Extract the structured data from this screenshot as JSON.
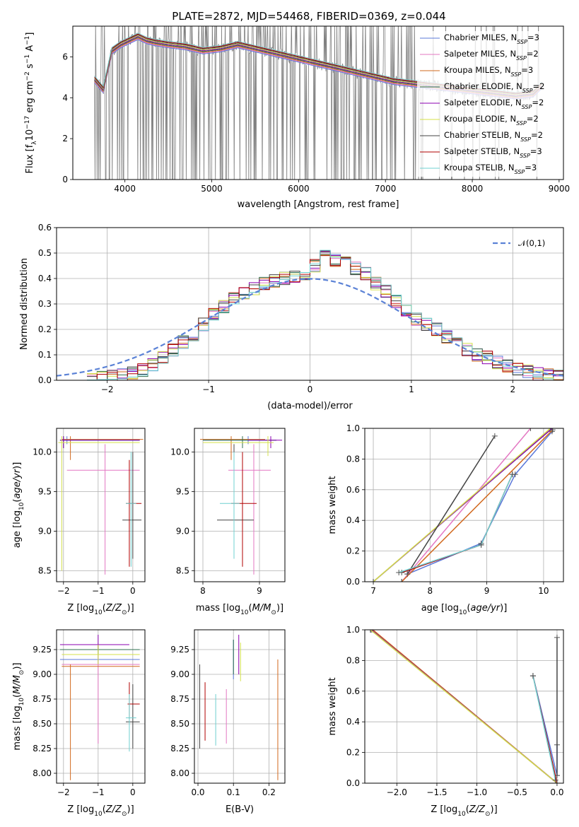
{
  "figure": {
    "title": "PLATE=2872, MJD=54468, FIBERID=0369, z=0.044"
  },
  "colors": {
    "Chabrier MILES": "#5b78d9",
    "Salpeter MILES": "#e377c2",
    "Kroupa MILES": "#d2691e",
    "Chabrier ELODIE": "#2f6f4f",
    "Salpeter ELODIE": "#8b00b0",
    "Kroupa ELODIE": "#d4e04a",
    "Chabrier STELIB": "#444444",
    "Salpeter STELIB": "#b00000",
    "Kroupa STELIB": "#6fd0d0",
    "data": "#808080",
    "normal": "#5b82d6"
  },
  "chart_data": [
    {
      "id": "spectrum",
      "type": "line",
      "title": "PLATE=2872, MJD=54468, FIBERID=0369, z=0.044",
      "xlabel": "wavelength [Angstrom, rest frame]",
      "ylabel": "Flux [f_λ 10^-17 erg cm^-2 s^-1 A^-1]",
      "xlim": [
        3400,
        9050
      ],
      "ylim": [
        0,
        7.5
      ],
      "xticks": [
        4000,
        5000,
        6000,
        7000,
        8000,
        9000
      ],
      "yticks": [
        0,
        2,
        4,
        6
      ],
      "legend_position": "right",
      "series": [
        {
          "name": "Chabrier MILES, N_SSP=3",
          "label_main": "Chabrier MILES, N",
          "label_sub": "SSP",
          "label_tail": "=3",
          "color": "#5b78d9"
        },
        {
          "name": "Salpeter MILES, N_SSP=2",
          "label_main": "Salpeter MILES, N",
          "label_sub": "SSP",
          "label_tail": "=2",
          "color": "#e377c2"
        },
        {
          "name": "Kroupa MILES, N_SSP=3",
          "label_main": "Kroupa MILES, N",
          "label_sub": "SSP",
          "label_tail": "=3",
          "color": "#d2691e"
        },
        {
          "name": "Chabrier ELODIE, N_SSP=2",
          "label_main": "Chabrier ELODIE, N",
          "label_sub": "SSP",
          "label_tail": "=2",
          "color": "#2f6f4f"
        },
        {
          "name": "Salpeter ELODIE, N_SSP=2",
          "label_main": "Salpeter ELODIE, N",
          "label_sub": "SSP",
          "label_tail": "=2",
          "color": "#8b00b0"
        },
        {
          "name": "Kroupa ELODIE, N_SSP=2",
          "label_main": "Kroupa ELODIE, N",
          "label_sub": "SSP",
          "label_tail": "=2",
          "color": "#d4e04a"
        },
        {
          "name": "Chabrier STELIB, N_SSP=2",
          "label_main": "Chabrier STELIB, N",
          "label_sub": "SSP",
          "label_tail": "=2",
          "color": "#444444"
        },
        {
          "name": "Salpeter STELIB, N_SSP=3",
          "label_main": "Salpeter STELIB, N",
          "label_sub": "SSP",
          "label_tail": "=3",
          "color": "#b00000"
        },
        {
          "name": "Kroupa STELIB, N_SSP=3",
          "label_main": "Kroupa STELIB, N",
          "label_sub": "SSP",
          "label_tail": "=3",
          "color": "#6fd0d0"
        }
      ],
      "model_continuum": {
        "x": [
          3650,
          3750,
          3850,
          3950,
          4050,
          4150,
          4250,
          4350,
          4500,
          4700,
          4900,
          5100,
          5300,
          5500,
          5700,
          5900,
          6100,
          6300,
          6500,
          6700,
          6900,
          7100,
          7300,
          7500,
          7700,
          7900,
          8100,
          8300,
          8500,
          8700,
          8800
        ],
        "y": [
          4.9,
          4.4,
          6.3,
          6.6,
          6.8,
          7.0,
          6.8,
          6.7,
          6.6,
          6.5,
          6.3,
          6.4,
          6.6,
          6.4,
          6.2,
          6.0,
          5.8,
          5.6,
          5.4,
          5.2,
          5.0,
          4.8,
          4.7,
          4.6,
          4.5,
          4.4,
          4.3,
          4.2,
          4.1,
          4.2,
          4.6
        ]
      }
    },
    {
      "id": "residuals",
      "type": "line",
      "xlabel": "(data-model)/error",
      "ylabel": "Normed distribution",
      "xlim": [
        -2.5,
        2.5
      ],
      "ylim": [
        0,
        0.6
      ],
      "xticks": [
        -2,
        -1,
        0,
        1,
        2
      ],
      "yticks": [
        0.0,
        0.1,
        0.2,
        0.3,
        0.4,
        0.5,
        0.6
      ],
      "legend_math": "𝒩(0,1)",
      "legend_position": "upper right",
      "series": [
        {
          "name": "N(0,1)",
          "style": "dashed",
          "color": "#5b82d6"
        }
      ],
      "histogram": {
        "bin_edges": [
          -2.2,
          -2.1,
          -2.0,
          -1.9,
          -1.8,
          -1.7,
          -1.6,
          -1.5,
          -1.4,
          -1.3,
          -1.2,
          -1.1,
          -1.0,
          -0.9,
          -0.8,
          -0.7,
          -0.6,
          -0.5,
          -0.4,
          -0.3,
          -0.2,
          -0.1,
          0.0,
          0.1,
          0.2,
          0.3,
          0.4,
          0.5,
          0.6,
          0.7,
          0.8,
          0.9,
          1.0,
          1.1,
          1.2,
          1.3,
          1.4,
          1.5,
          1.6,
          1.7,
          1.8,
          1.9,
          2.0,
          2.1,
          2.2,
          2.3,
          2.4,
          2.5
        ],
        "values": [
          0.005,
          0.01,
          0.015,
          0.02,
          0.03,
          0.04,
          0.06,
          0.09,
          0.12,
          0.15,
          0.18,
          0.22,
          0.26,
          0.29,
          0.32,
          0.34,
          0.36,
          0.38,
          0.39,
          0.4,
          0.41,
          0.42,
          0.45,
          0.5,
          0.47,
          0.46,
          0.44,
          0.42,
          0.38,
          0.35,
          0.31,
          0.27,
          0.24,
          0.22,
          0.2,
          0.17,
          0.15,
          0.12,
          0.1,
          0.09,
          0.07,
          0.055,
          0.045,
          0.035,
          0.025,
          0.02,
          0.015
        ]
      }
    },
    {
      "id": "age_vs_Z",
      "type": "scatter",
      "xlabel": "Z [log10(Z/Z⊙)]",
      "ylabel": "age [log10(age/yr)]",
      "xlim": [
        -2.2,
        0.35
      ],
      "ylim": [
        8.36,
        10.3
      ],
      "xticks": [
        -2,
        -1,
        0
      ],
      "yticks": [
        8.5,
        9.0,
        9.5,
        10.0
      ],
      "points": [
        {
          "model": "Chabrier MILES",
          "x": -1.9,
          "y": 10.15,
          "xlo": -2.1,
          "xhi": 0.2,
          "ylo": 10.1,
          "yhi": 10.2
        },
        {
          "model": "Salpeter MILES",
          "x": -0.8,
          "y": 9.77,
          "xlo": -1.9,
          "xhi": 0.2,
          "ylo": 8.45,
          "yhi": 10.1
        },
        {
          "model": "Kroupa MILES",
          "x": -1.8,
          "y": 10.16,
          "xlo": -2.05,
          "xhi": 0.3,
          "ylo": 9.9,
          "yhi": 10.2
        },
        {
          "model": "Chabrier ELODIE",
          "x": -2.0,
          "y": 10.15,
          "xlo": -2.1,
          "xhi": 0.2,
          "ylo": 10.05,
          "yhi": 10.2
        },
        {
          "model": "Salpeter ELODIE",
          "x": -2.0,
          "y": 10.15,
          "xlo": -2.1,
          "xhi": 0.2,
          "ylo": 10.05,
          "yhi": 10.2
        },
        {
          "model": "Kroupa ELODIE",
          "x": -2.05,
          "y": 10.12,
          "xlo": -2.15,
          "xhi": 0.2,
          "ylo": 8.5,
          "yhi": 10.2
        },
        {
          "model": "Chabrier STELIB",
          "x": 0.0,
          "y": 9.14,
          "xlo": -0.3,
          "xhi": 0.25,
          "ylo": 8.65,
          "yhi": 10.0
        },
        {
          "model": "Salpeter STELIB",
          "x": -0.1,
          "y": 9.35,
          "xlo": -0.2,
          "xhi": 0.25,
          "ylo": 8.55,
          "yhi": 9.9
        },
        {
          "model": "Kroupa STELIB",
          "x": -0.05,
          "y": 9.35,
          "xlo": -0.2,
          "xhi": 0.1,
          "ylo": 8.55,
          "yhi": 10.0
        }
      ]
    },
    {
      "id": "age_vs_mass",
      "type": "scatter",
      "xlabel": "mass [log10(M/M⊙)]",
      "ylabel": "",
      "xlim": [
        7.85,
        9.45
      ],
      "ylim": [
        8.36,
        10.3
      ],
      "xticks": [
        8,
        9
      ],
      "yticks": [
        8.5,
        9.0,
        9.5,
        10.0
      ],
      "points": [
        {
          "model": "Chabrier MILES",
          "x": 8.8,
          "y": 10.15,
          "xlo": 8.0,
          "xhi": 9.3,
          "ylo": 10.1,
          "yhi": 10.2
        },
        {
          "model": "Salpeter MILES",
          "x": 8.9,
          "y": 9.77,
          "xlo": 8.45,
          "xhi": 9.2,
          "ylo": 8.45,
          "yhi": 10.1
        },
        {
          "model": "Kroupa MILES",
          "x": 8.5,
          "y": 10.16,
          "xlo": 7.95,
          "xhi": 9.1,
          "ylo": 9.9,
          "yhi": 10.2
        },
        {
          "model": "Chabrier ELODIE",
          "x": 8.7,
          "y": 10.15,
          "xlo": 8.0,
          "xhi": 9.3,
          "ylo": 10.05,
          "yhi": 10.2
        },
        {
          "model": "Salpeter ELODIE",
          "x": 9.2,
          "y": 10.15,
          "xlo": 8.8,
          "xhi": 9.4,
          "ylo": 10.05,
          "yhi": 10.2
        },
        {
          "model": "Kroupa ELODIE",
          "x": 9.15,
          "y": 10.12,
          "xlo": 8.0,
          "xhi": 9.25,
          "ylo": 9.95,
          "yhi": 10.2
        },
        {
          "model": "Chabrier STELIB",
          "x": 8.55,
          "y": 9.14,
          "xlo": 8.25,
          "xhi": 8.9,
          "ylo": 8.65,
          "yhi": 10.1
        },
        {
          "model": "Salpeter STELIB",
          "x": 8.7,
          "y": 9.35,
          "xlo": 8.5,
          "xhi": 8.95,
          "ylo": 8.55,
          "yhi": 10.0
        },
        {
          "model": "Kroupa STELIB",
          "x": 8.55,
          "y": 9.35,
          "xlo": 8.3,
          "xhi": 8.65,
          "ylo": 8.65,
          "yhi": 10.0
        }
      ]
    },
    {
      "id": "massweight_vs_age",
      "type": "line",
      "xlabel": "age [log10(age/yr)]",
      "ylabel": "mass weight",
      "xlim": [
        6.85,
        10.35
      ],
      "ylim": [
        0,
        1.0
      ],
      "xticks": [
        7,
        8,
        9,
        10
      ],
      "yticks": [
        0.0,
        0.2,
        0.4,
        0.6,
        0.8,
        1.0
      ],
      "series": [
        {
          "model": "Chabrier MILES",
          "x": [
            7.6,
            8.9,
            9.5,
            10.15
          ],
          "y": [
            0.05,
            0.25,
            0.7,
            0.98
          ]
        },
        {
          "model": "Salpeter MILES",
          "x": [
            7.5,
            9.77
          ],
          "y": [
            0.0,
            1.0
          ]
        },
        {
          "model": "Kroupa MILES",
          "x": [
            7.5,
            10.16
          ],
          "y": [
            0.0,
            0.99
          ]
        },
        {
          "model": "Chabrier ELODIE",
          "x": [
            7.0,
            10.15
          ],
          "y": [
            0.0,
            1.0
          ]
        },
        {
          "model": "Salpeter ELODIE",
          "x": [
            7.0,
            10.15
          ],
          "y": [
            0.0,
            1.0
          ]
        },
        {
          "model": "Kroupa ELODIE",
          "x": [
            7.0,
            10.12
          ],
          "y": [
            0.0,
            1.0
          ]
        },
        {
          "model": "Chabrier STELIB",
          "x": [
            7.6,
            9.14
          ],
          "y": [
            0.05,
            0.95
          ]
        },
        {
          "model": "Salpeter STELIB",
          "x": [
            7.5,
            8.9,
            9.45
          ],
          "y": [
            0.06,
            0.24,
            0.7
          ]
        },
        {
          "model": "Kroupa STELIB",
          "x": [
            7.45,
            8.9,
            9.45
          ],
          "y": [
            0.06,
            0.24,
            0.7
          ]
        }
      ]
    },
    {
      "id": "mass_vs_Z",
      "type": "scatter",
      "xlabel": "Z [log10(Z/Z⊙)]",
      "ylabel": "mass [log10(M/M⊙)]",
      "xlim": [
        -2.2,
        0.35
      ],
      "ylim": [
        7.9,
        9.45
      ],
      "xticks": [
        -2,
        -1,
        0
      ],
      "yticks": [
        8.0,
        8.25,
        8.5,
        8.75,
        9.0,
        9.25
      ],
      "points": [
        {
          "model": "Chabrier MILES",
          "x": -1.0,
          "y": 9.15,
          "xlo": -2.1,
          "xhi": 0.2,
          "ylo": 9.1,
          "yhi": 9.2
        },
        {
          "model": "Salpeter MILES",
          "x": -1.0,
          "y": 9.1,
          "xlo": -2.05,
          "xhi": 0.2,
          "ylo": 8.3,
          "yhi": 9.3
        },
        {
          "model": "Kroupa MILES",
          "x": -1.8,
          "y": 9.08,
          "xlo": -2.05,
          "xhi": 0.2,
          "ylo": 7.93,
          "yhi": 9.1
        },
        {
          "model": "Chabrier ELODIE",
          "x": -1.0,
          "y": 9.25,
          "xlo": -2.1,
          "xhi": 0.2,
          "ylo": 9.2,
          "yhi": 9.3
        },
        {
          "model": "Salpeter ELODIE",
          "x": -1.0,
          "y": 9.3,
          "xlo": -2.1,
          "xhi": -0.1,
          "ylo": 9.25,
          "yhi": 9.4
        },
        {
          "model": "Kroupa ELODIE",
          "x": -1.0,
          "y": 9.2,
          "xlo": -2.05,
          "xhi": 0.2,
          "ylo": 9.1,
          "yhi": 9.3
        },
        {
          "model": "Chabrier STELIB",
          "x": 0.0,
          "y": 8.52,
          "xlo": -0.2,
          "xhi": 0.2,
          "ylo": 8.25,
          "yhi": 8.9
        },
        {
          "model": "Salpeter STELIB",
          "x": -0.1,
          "y": 8.7,
          "xlo": -0.15,
          "xhi": 0.2,
          "ylo": 8.55,
          "yhi": 8.92
        },
        {
          "model": "Kroupa STELIB",
          "x": -0.1,
          "y": 8.56,
          "xlo": -0.2,
          "xhi": 0.1,
          "ylo": 8.22,
          "yhi": 8.8
        }
      ]
    },
    {
      "id": "mass_vs_ebv",
      "type": "scatter",
      "xlabel": "E(B-V)",
      "ylabel": "",
      "xlim": [
        -0.01,
        0.245
      ],
      "ylim": [
        7.9,
        9.45
      ],
      "xticks": [
        0.0,
        0.1,
        0.2
      ],
      "yticks": [
        8.0,
        8.25,
        8.5,
        8.75,
        9.0,
        9.25
      ],
      "points": [
        {
          "model": "Chabrier MILES",
          "x": 0.1,
          "ylo": 8.95,
          "yhi": 9.35
        },
        {
          "model": "Salpeter MILES",
          "x": 0.08,
          "ylo": 8.3,
          "yhi": 8.85
        },
        {
          "model": "Kroupa MILES",
          "x": 0.225,
          "ylo": 7.93,
          "yhi": 9.15
        },
        {
          "model": "Chabrier ELODIE",
          "x": 0.1,
          "ylo": 9.0,
          "yhi": 9.35
        },
        {
          "model": "Salpeter ELODIE",
          "x": 0.115,
          "ylo": 9.0,
          "yhi": 9.4
        },
        {
          "model": "Kroupa ELODIE",
          "x": 0.12,
          "ylo": 8.93,
          "yhi": 9.32
        },
        {
          "model": "Chabrier STELIB",
          "x": 0.005,
          "ylo": 8.25,
          "yhi": 9.1
        },
        {
          "model": "Salpeter STELIB",
          "x": 0.02,
          "ylo": 8.33,
          "yhi": 8.92
        },
        {
          "model": "Kroupa STELIB",
          "x": 0.05,
          "ylo": 8.28,
          "yhi": 8.8
        }
      ]
    },
    {
      "id": "massweight_vs_Z",
      "type": "line",
      "xlabel": "Z [log10(Z/Z⊙)]",
      "ylabel": "mass weight",
      "xlim": [
        -2.4,
        0.08
      ],
      "ylim": [
        0,
        1.0
      ],
      "xticks": [
        -2.0,
        -1.5,
        -1.0,
        -0.5,
        0.0
      ],
      "yticks": [
        0.0,
        0.2,
        0.4,
        0.6,
        0.8,
        1.0
      ],
      "series": [
        {
          "model": "Chabrier MILES",
          "x": [
            -0.3,
            0.0,
            0.0
          ],
          "y": [
            0.7,
            0.05,
            0.25
          ]
        },
        {
          "model": "Salpeter MILES",
          "x": [
            -2.3,
            0.0
          ],
          "y": [
            1.0,
            0.0
          ]
        },
        {
          "model": "Kroupa MILES",
          "x": [
            -2.3,
            0.0
          ],
          "y": [
            1.0,
            0.0
          ]
        },
        {
          "model": "Chabrier ELODIE",
          "x": [
            -2.32,
            0.0
          ],
          "y": [
            1.0,
            0.0
          ]
        },
        {
          "model": "Salpeter ELODIE",
          "x": [
            -2.32,
            0.0
          ],
          "y": [
            1.0,
            0.0
          ]
        },
        {
          "model": "Kroupa ELODIE",
          "x": [
            -2.33,
            0.0
          ],
          "y": [
            1.0,
            0.0
          ]
        },
        {
          "model": "Chabrier STELIB",
          "x": [
            0.0,
            0.0
          ],
          "y": [
            0.95,
            0.05
          ]
        },
        {
          "model": "Salpeter STELIB",
          "x": [
            -0.3,
            0.0
          ],
          "y": [
            0.7,
            0.0
          ]
        },
        {
          "model": "Kroupa STELIB",
          "x": [
            -0.3,
            -0.02
          ],
          "y": [
            0.7,
            0.02
          ]
        }
      ]
    }
  ]
}
